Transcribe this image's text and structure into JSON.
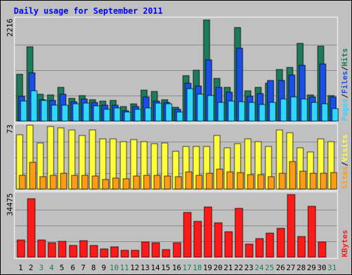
{
  "chart_data": {
    "type": "bar",
    "title": "Daily usage for September 2011",
    "days": [
      "1",
      "2",
      "3",
      "4",
      "5",
      "6",
      "7",
      "8",
      "9",
      "10",
      "11",
      "12",
      "13",
      "14",
      "15",
      "16",
      "17",
      "18",
      "19",
      "20",
      "21",
      "22",
      "23",
      "24",
      "25",
      "26",
      "27",
      "28",
      "29",
      "30",
      "31"
    ],
    "weekend_days": [
      "3",
      "4",
      "10",
      "11",
      "17",
      "18",
      "24",
      "25",
      "31"
    ],
    "colors": {
      "background": "#c0c0c0",
      "frame": "#ffffff",
      "title": "#0000ff",
      "hits": "#1e7a5a",
      "files": "#1a4ee6",
      "pages": "#2fd7ff",
      "visits": "#ffff3a",
      "sites": "#ff9b17",
      "kbytes": "#ff1a1a",
      "weekday_label": "#000000",
      "weekend_label": "#1e7a5a"
    },
    "panels": [
      {
        "key": "top",
        "max_label": "2216",
        "ymax": 2216,
        "axis_labels": [
          {
            "text": "Pages",
            "color": "#2fd7ff"
          },
          {
            "text": "/",
            "color": "#000000"
          },
          {
            "text": "Files",
            "color": "#1a4ee6"
          },
          {
            "text": "/",
            "color": "#000000"
          },
          {
            "text": "Hits",
            "color": "#1e7a5a"
          }
        ],
        "series": [
          {
            "name": "Hits",
            "color": "#1e7a5a",
            "values": [
              1020,
              1620,
              580,
              570,
              740,
              500,
              560,
              460,
              440,
              450,
              320,
              370,
              680,
              640,
              470,
              300,
              990,
              1110,
              2200,
              930,
              740,
              2040,
              660,
              740,
              830,
              1130,
              1170,
              1690,
              570,
              1630,
              560
            ]
          },
          {
            "name": "Files",
            "color": "#1a4ee6",
            "values": [
              540,
              1050,
              470,
              450,
              580,
              420,
              480,
              400,
              340,
              350,
              230,
              320,
              520,
              440,
              410,
              250,
              830,
              770,
              1330,
              740,
              630,
              1590,
              540,
              600,
              880,
              880,
              1000,
              1220,
              520,
              1240,
              530
            ]
          },
          {
            "name": "Pages",
            "color": "#2fd7ff",
            "values": [
              430,
              660,
              450,
              340,
              350,
              370,
              390,
              330,
              260,
              280,
              200,
              250,
              280,
              390,
              380,
              200,
              700,
              580,
              560,
              410,
              430,
              420,
              400,
              360,
              400,
              480,
              520,
              480,
              410,
              370,
              270
            ]
          }
        ]
      },
      {
        "key": "mid",
        "max_label": "73",
        "ymax": 73,
        "axis_labels": [
          {
            "text": "Sites",
            "color": "#ff9b17"
          },
          {
            "text": "/",
            "color": "#000000"
          },
          {
            "text": "Visits",
            "color": "#ffff3a"
          }
        ],
        "series": [
          {
            "name": "Visits",
            "color": "#ffff3a",
            "values": [
              63,
              74,
              53,
              72,
              71,
              68,
              62,
              68,
              58,
              58,
              55,
              57,
              55,
              52,
              53,
              44,
              49,
              49,
              49,
              62,
              48,
              52,
              58,
              55,
              49,
              68,
              65,
              48,
              43,
              58,
              55
            ]
          },
          {
            "name": "Sites",
            "color": "#ff9b17",
            "values": [
              16,
              31,
              14,
              16,
              18,
              16,
              16,
              15,
              11,
              13,
              12,
              15,
              16,
              16,
              15,
              14,
              20,
              16,
              18,
              23,
              20,
              19,
              17,
              17,
              14,
              18,
              32,
              21,
              18,
              18,
              19
            ]
          }
        ]
      },
      {
        "key": "bot",
        "max_label": "34475",
        "ymax": 34475,
        "axis_labels": [
          {
            "text": "KBytes",
            "color": "#ff1a1a"
          }
        ],
        "series": [
          {
            "name": "KBytes",
            "color": "#ff1a1a",
            "values": [
              9500,
              32000,
              9500,
              7900,
              8600,
              6300,
              9100,
              6300,
              4500,
              5800,
              3700,
              3700,
              8300,
              7900,
              4200,
              7800,
              24500,
              19300,
              27400,
              18600,
              13900,
              26500,
              7000,
              10000,
              13000,
              15800,
              34000,
              11200,
              27600,
              8300,
              0
            ]
          }
        ]
      }
    ]
  }
}
